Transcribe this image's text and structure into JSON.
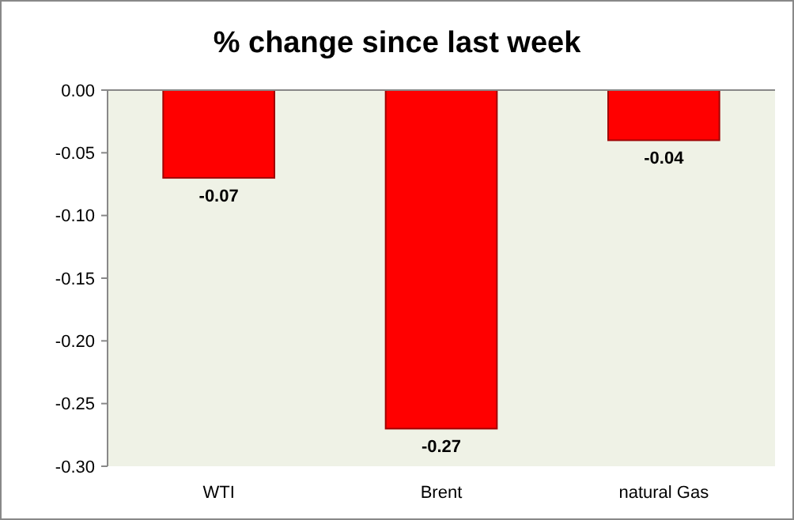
{
  "chart_data": {
    "type": "bar",
    "title": "% change since last week",
    "categories": [
      "WTI",
      "Brent",
      "natural Gas"
    ],
    "values": [
      -0.07,
      -0.27,
      -0.04
    ],
    "color": "#ff0000",
    "data_labels": true,
    "grid": false,
    "ylim": [
      -0.3,
      0
    ],
    "yticks": [
      {
        "value": 0,
        "label": "0.00"
      },
      {
        "value": -0.05,
        "label": "-0.05"
      },
      {
        "value": -0.1,
        "label": "-0.10"
      },
      {
        "value": -0.15,
        "label": "-0.15"
      },
      {
        "value": -0.2,
        "label": "-0.20"
      },
      {
        "value": -0.25,
        "label": "-0.25"
      },
      {
        "value": -0.3,
        "label": "-0.30"
      }
    ]
  }
}
